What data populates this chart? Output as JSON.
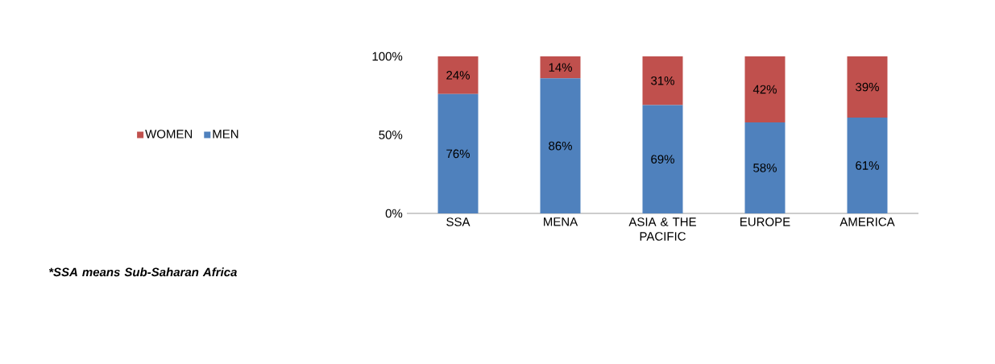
{
  "chart_data": {
    "type": "bar",
    "stacked": true,
    "categories": [
      "SSA",
      "MENA",
      "ASIA & THE PACIFIC",
      "EUROPE",
      "AMERICA"
    ],
    "series": [
      {
        "name": "MEN",
        "color": "#4f81bd",
        "values": [
          76,
          86,
          69,
          58,
          61
        ],
        "value_labels": [
          "76%",
          "86%",
          "69%",
          "58%",
          "61%"
        ]
      },
      {
        "name": "WOMEN",
        "color": "#c0504d",
        "values": [
          24,
          14,
          31,
          42,
          39
        ],
        "value_labels": [
          "24%",
          "14%",
          "31%",
          "42%",
          "39%"
        ]
      }
    ],
    "ylim": [
      0,
      100
    ],
    "yticks": [
      {
        "value": 0,
        "label": "0%"
      },
      {
        "value": 50,
        "label": "50%"
      },
      {
        "value": 100,
        "label": "100%"
      }
    ],
    "legend": "left",
    "annotations": [
      "*SSA means Sub-Saharan Africa"
    ]
  }
}
